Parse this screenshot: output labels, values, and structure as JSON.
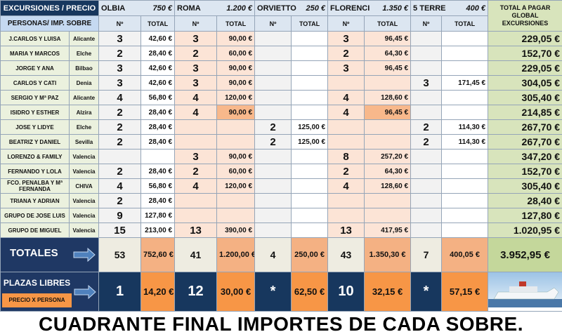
{
  "header": {
    "label": "EXCURSIONES / PRECIO",
    "excursions": [
      {
        "name": "OLBIA",
        "price": "750 €"
      },
      {
        "name": "ROMA",
        "price": "1.200 €"
      },
      {
        "name": "ORVIETTO",
        "price": "250 €"
      },
      {
        "name": "FLORENCI",
        "price": "1.350 €"
      },
      {
        "name": "5 TERRE",
        "price": "400 €"
      }
    ],
    "total_label": "TOTAL A PAGAR GLOBAL EXCURSIONES"
  },
  "subheader": {
    "label": "PERSONAS/  IMP. SOBRE",
    "num": "Nº",
    "total": "TOTAL"
  },
  "rows": [
    {
      "name": "J.CARLOS Y LUISA",
      "city": "Alicante",
      "cells": [
        [
          3,
          "42,60 €"
        ],
        [
          3,
          "90,00 €"
        ],
        [
          null,
          null
        ],
        [
          3,
          "96,45 €"
        ],
        [
          null,
          null
        ]
      ],
      "total": "229,05 €"
    },
    {
      "name": "MARIA Y MARCOS",
      "city": "Elche",
      "cells": [
        [
          2,
          "28,40 €"
        ],
        [
          2,
          "60,00 €"
        ],
        [
          null,
          null
        ],
        [
          2,
          "64,30 €"
        ],
        [
          null,
          null
        ]
      ],
      "total": "152,70 €"
    },
    {
      "name": "JORGE Y ANA",
      "city": "Bilbao",
      "cells": [
        [
          3,
          "42,60 €"
        ],
        [
          3,
          "90,00 €"
        ],
        [
          null,
          null
        ],
        [
          3,
          "96,45 €"
        ],
        [
          null,
          null
        ]
      ],
      "total": "229,05 €"
    },
    {
      "name": "CARLOS Y CATI",
      "city": "Denia",
      "cells": [
        [
          3,
          "42,60 €"
        ],
        [
          3,
          "90,00 €"
        ],
        [
          null,
          null
        ],
        [
          null,
          null
        ],
        [
          3,
          "171,45 €"
        ]
      ],
      "total": "304,05 €"
    },
    {
      "name": "SERGIO Y Mª PAZ",
      "city": "Alicante",
      "cells": [
        [
          4,
          "56,80 €"
        ],
        [
          4,
          "120,00 €"
        ],
        [
          null,
          null
        ],
        [
          4,
          "128,60 €"
        ],
        [
          null,
          null
        ]
      ],
      "total": "305,40 €"
    },
    {
      "name": "ISIDRO Y ESTHER",
      "city": "Alzira",
      "cells": [
        [
          2,
          "28,40 €"
        ],
        [
          4,
          "90,00 €"
        ],
        [
          null,
          null
        ],
        [
          4,
          "96,45 €"
        ],
        [
          null,
          null
        ]
      ],
      "total": "214,85 €"
    },
    {
      "name": "JOSE Y LIDYE",
      "city": "Elche",
      "cells": [
        [
          2,
          "28,40 €"
        ],
        [
          null,
          null
        ],
        [
          2,
          "125,00 €"
        ],
        [
          null,
          null
        ],
        [
          2,
          "114,30 €"
        ]
      ],
      "total": "267,70 €"
    },
    {
      "name": "BEATRIZ Y DANIEL",
      "city": "Sevilla",
      "cells": [
        [
          2,
          "28,40 €"
        ],
        [
          null,
          null
        ],
        [
          2,
          "125,00 €"
        ],
        [
          null,
          null
        ],
        [
          2,
          "114,30 €"
        ]
      ],
      "total": "267,70 €"
    },
    {
      "name": "LORENZO & FAMILY",
      "city": "Valencia",
      "cells": [
        [
          null,
          null
        ],
        [
          3,
          "90,00 €"
        ],
        [
          null,
          null
        ],
        [
          8,
          "257,20 €"
        ],
        [
          null,
          null
        ]
      ],
      "total": "347,20 €"
    },
    {
      "name": "FERNANDO Y LOLA",
      "city": "Valencia",
      "cells": [
        [
          2,
          "28,40 €"
        ],
        [
          2,
          "60,00 €"
        ],
        [
          null,
          null
        ],
        [
          2,
          "64,30 €"
        ],
        [
          null,
          null
        ]
      ],
      "total": "152,70 €"
    },
    {
      "name": "FCO. PENALBA Y Mª FERNANDA",
      "city": "CHIVA",
      "cells": [
        [
          4,
          "56,80 €"
        ],
        [
          4,
          "120,00 €"
        ],
        [
          null,
          null
        ],
        [
          4,
          "128,60 €"
        ],
        [
          null,
          null
        ]
      ],
      "total": "305,40 €"
    },
    {
      "name": "TRIANA Y ADRIAN",
      "city": "Valencia",
      "cells": [
        [
          2,
          "28,40 €"
        ],
        [
          null,
          null
        ],
        [
          null,
          null
        ],
        [
          null,
          null
        ],
        [
          null,
          null
        ]
      ],
      "total": "28,40 €"
    },
    {
      "name": "GRUPO DE JOSE LUIS",
      "city": "Valencia",
      "cells": [
        [
          9,
          "127,80 €"
        ],
        [
          null,
          null
        ],
        [
          null,
          null
        ],
        [
          null,
          null
        ],
        [
          null,
          null
        ]
      ],
      "total": "127,80 €"
    },
    {
      "name": "GRUPO DE MIGUEL",
      "city": "Valencia",
      "cells": [
        [
          15,
          "213,00 €"
        ],
        [
          13,
          "390,00 €"
        ],
        [
          null,
          null
        ],
        [
          13,
          "417,95 €"
        ],
        [
          null,
          null
        ]
      ],
      "total": "1.020,95 €"
    }
  ],
  "totals": {
    "label": "TOTALES",
    "cells": [
      [
        53,
        "752,60 €"
      ],
      [
        41,
        "1.200,00 €"
      ],
      [
        4,
        "250,00 €"
      ],
      [
        43,
        "1.350,30 €"
      ],
      [
        7,
        "400,05 €"
      ]
    ],
    "total": "3.952,95 €"
  },
  "free": {
    "label": "PLAZAS LIBRES",
    "sublabel": "PRECIO X PERSONA",
    "cells": [
      [
        1,
        "14,20 €"
      ],
      [
        12,
        "30,00 €"
      ],
      [
        "*",
        "62,50 €"
      ],
      [
        10,
        "32,15 €"
      ],
      [
        "*",
        "57,15 €"
      ]
    ]
  },
  "footer": "CUADRANTE FINAL IMPORTES DE CADA SOBRE."
}
